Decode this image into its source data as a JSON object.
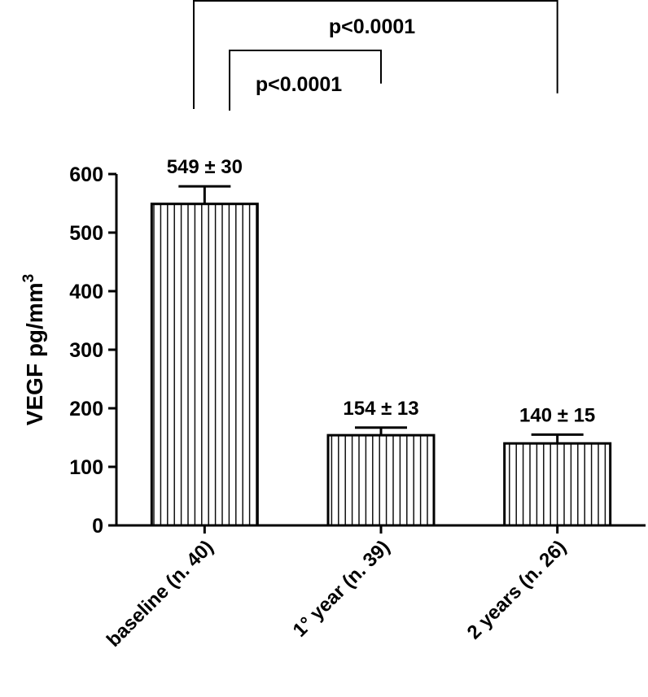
{
  "chart_data": {
    "type": "bar",
    "categories": [
      "baseline (n. 40)",
      "1° year (n. 39)",
      "2 years (n. 26)"
    ],
    "values": [
      549,
      154,
      140
    ],
    "errors": [
      30,
      13,
      15
    ],
    "data_labels": [
      "549 ± 30",
      "154 ± 13",
      "140 ± 15"
    ],
    "ylabel": "VEGF pg/mm",
    "ylabel_superscript": "3",
    "ylim": [
      0,
      600
    ],
    "yticks": [
      "0",
      "100",
      "200",
      "300",
      "400",
      "500",
      "600"
    ],
    "bar_fill": "vertical-hatch",
    "color": "#000000",
    "comparisons": [
      {
        "from": 0,
        "to": 1,
        "label": "p<0.0001"
      },
      {
        "from": 0,
        "to": 2,
        "label": "p<0.0001"
      }
    ]
  }
}
